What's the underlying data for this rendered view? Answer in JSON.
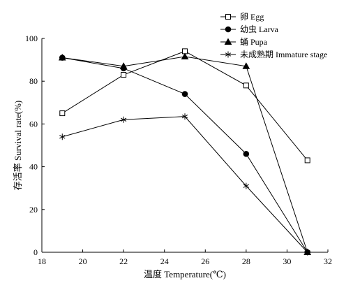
{
  "chart_data": {
    "type": "line",
    "title": "",
    "xlabel": "温度 Temperature(℃)",
    "ylabel": "存活率 Survival rate(%)",
    "xlim": [
      18,
      32
    ],
    "ylim": [
      0,
      100
    ],
    "xticks": [
      18,
      20,
      22,
      24,
      26,
      28,
      30,
      32
    ],
    "yticks": [
      0,
      20,
      40,
      60,
      80,
      100
    ],
    "grid": false,
    "legend_position": "top-right",
    "x": [
      19,
      22,
      25,
      28,
      31
    ],
    "series": [
      {
        "name": "卵 Egg",
        "marker": "open-square",
        "values": [
          65,
          83,
          94,
          78,
          43
        ]
      },
      {
        "name": "幼虫 Larva",
        "marker": "filled-circle",
        "values": [
          91,
          86,
          74,
          46,
          0
        ]
      },
      {
        "name": "蛹 Pupa",
        "marker": "filled-triangle",
        "values": [
          91,
          87,
          91.5,
          87,
          0
        ]
      },
      {
        "name": "未成熟期 Immature stage",
        "marker": "star",
        "values": [
          54,
          62,
          63.5,
          31,
          0
        ]
      }
    ],
    "colors": {
      "line": "#000000",
      "background": "#ffffff"
    }
  }
}
